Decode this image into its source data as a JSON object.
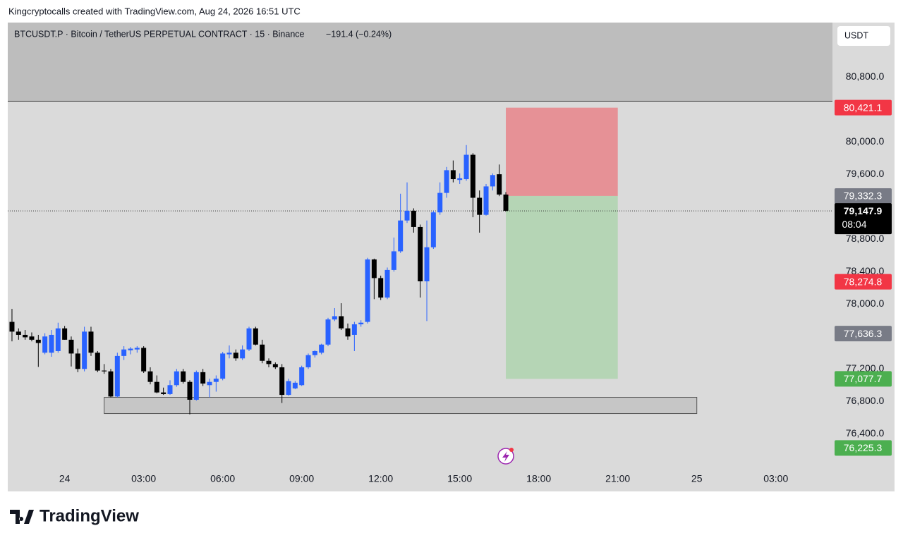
{
  "header": {
    "credit": "Kingcryptocalls created with TradingView.com, Aug 24, 2026 16:51 UTC",
    "symbol": "BTCUSDT.P · Bitcoin / TetherUS PERPETUAL CONTRACT · 15 · Binance",
    "change": "−191.4 (−0.24%)",
    "currency": "USDT"
  },
  "footer": {
    "brand": "TradingView"
  },
  "chart_data": {
    "type": "candlestick",
    "up_color": "#2962ff",
    "down_color": "#000000",
    "open": [
      77780,
      77660,
      77620,
      77600,
      77560,
      77400,
      77400,
      77420,
      77700,
      77560,
      77390,
      77200,
      77660,
      77400,
      77180,
      77170,
      76860,
      77360,
      77430,
      77440,
      77460,
      77170,
      77040,
      76910,
      76890,
      77000,
      77170,
      77040,
      76820,
      77160,
      77000,
      77040,
      77080,
      77380,
      77400,
      77330,
      77440,
      77700,
      77500,
      77300,
      77260,
      77220,
      76880,
      76960,
      77000,
      77220,
      77370,
      77400,
      77500,
      77810,
      77850,
      77700,
      77620,
      77750,
      77780,
      78550,
      78320,
      78080,
      78420,
      78650,
      79030,
      79150,
      78950,
      78280,
      78700,
      79130,
      79370,
      79650,
      79530,
      79540,
      79840,
      79310,
      79100,
      79450,
      79600,
      79350
    ],
    "high": [
      77940,
      77700,
      77680,
      77650,
      77620,
      77640,
      77680,
      77770,
      77730,
      77600,
      77450,
      77720,
      77720,
      77420,
      77260,
      77200,
      77400,
      77480,
      77470,
      77480,
      77480,
      77220,
      77120,
      76970,
      77060,
      77200,
      77200,
      77060,
      77180,
      77200,
      77080,
      77120,
      77410,
      77490,
      77440,
      77490,
      77720,
      77720,
      77560,
      77330,
      77280,
      77260,
      77080,
      77050,
      77240,
      77390,
      77430,
      77510,
      77830,
      77950,
      78010,
      77760,
      77780,
      77800,
      78570,
      78560,
      78350,
      78450,
      78820,
      79360,
      79500,
      79180,
      78980,
      79030,
      79150,
      79500,
      79690,
      79770,
      79610,
      79960,
      79860,
      79400,
      79480,
      79610,
      79720,
      79380
    ],
    "low": [
      77540,
      77560,
      77560,
      77540,
      77225,
      77380,
      77350,
      77400,
      77560,
      77230,
      77160,
      77170,
      77360,
      77160,
      77140,
      76850,
      76850,
      77310,
      77380,
      77400,
      77150,
      77010,
      76900,
      76880,
      76880,
      76980,
      77020,
      76640,
      76810,
      76990,
      76850,
      76920,
      77060,
      77330,
      77300,
      77310,
      77420,
      77490,
      77270,
      77220,
      77200,
      76780,
      76870,
      76950,
      76990,
      77200,
      77340,
      77380,
      77480,
      77790,
      77680,
      77560,
      77420,
      77720,
      77760,
      78060,
      78050,
      78060,
      78400,
      78630,
      79000,
      78880,
      78080,
      77790,
      78680,
      79100,
      79310,
      79500,
      79480,
      79520,
      79070,
      78880,
      79090,
      79400,
      79330,
      79140
    ],
    "close": [
      77660,
      77620,
      77590,
      77560,
      77520,
      77600,
      77620,
      77700,
      77560,
      77390,
      77200,
      77660,
      77400,
      77180,
      77170,
      76860,
      77360,
      77440,
      77450,
      77460,
      77170,
      77040,
      76910,
      76890,
      77000,
      77170,
      77040,
      76820,
      77160,
      77020,
      77040,
      77080,
      77390,
      77400,
      77330,
      77440,
      77700,
      77500,
      77300,
      77260,
      77220,
      76880,
      77050,
      77030,
      77220,
      77370,
      77420,
      77500,
      77810,
      77850,
      77700,
      77600,
      77750,
      77770,
      78550,
      78320,
      78080,
      78420,
      78650,
      79030,
      79150,
      78950,
      78280,
      78700,
      79130,
      79370,
      79650,
      79540,
      79550,
      79840,
      79310,
      79100,
      79450,
      79590,
      79350,
      79150
    ],
    "xlim": [
      -0.64,
      124.6
    ],
    "xticks": [
      {
        "value": 8,
        "label": "24"
      },
      {
        "value": 20,
        "label": "03:00"
      },
      {
        "value": 32,
        "label": "06:00"
      },
      {
        "value": 44,
        "label": "09:00"
      },
      {
        "value": 56,
        "label": "12:00"
      },
      {
        "value": 68,
        "label": "15:00"
      },
      {
        "value": 80,
        "label": "18:00"
      },
      {
        "value": 92,
        "label": "21:00"
      },
      {
        "value": 104,
        "label": "25"
      },
      {
        "value": 116,
        "label": "03:00"
      }
    ],
    "ylim": [
      75690,
      81470
    ],
    "yticks": [
      {
        "value": 76400,
        "label": "76,400.0"
      },
      {
        "value": 76800,
        "label": "76,800.0"
      },
      {
        "value": 77200,
        "label": "77,200.0"
      },
      {
        "value": 78000,
        "label": "78,000.0"
      },
      {
        "value": 78400,
        "label": "78,400.0"
      },
      {
        "value": 78800,
        "label": "78,800.0"
      },
      {
        "value": 79600,
        "label": "79,600.0"
      },
      {
        "value": 80000,
        "label": "80,000.0"
      },
      {
        "value": 80800,
        "label": "80,800.0"
      }
    ],
    "price_badges": [
      {
        "value": 80421.1,
        "label": "80,421.1",
        "color": "#f23645"
      },
      {
        "value": 79332.3,
        "label": "79,332.3",
        "color": "#787b86"
      },
      {
        "value": 78274.8,
        "label": "78,274.8",
        "color": "#f23645"
      },
      {
        "value": 77636.3,
        "label": "77,636.3",
        "color": "#787b86"
      },
      {
        "value": 77077.7,
        "label": "77,077.7",
        "color": "#4caf50"
      },
      {
        "value": 76225.3,
        "label": "76,225.3",
        "color": "#4caf50"
      }
    ],
    "last_price": {
      "value": 79147.9,
      "label": "79,147.9",
      "countdown": "08:04"
    },
    "position": {
      "entry": 79332.3,
      "stop": 80421.1,
      "target": 77077.7,
      "x_range": [
        75,
        92
      ]
    },
    "zone": {
      "range": [
        76650,
        76850
      ],
      "x_range": [
        14,
        104
      ]
    }
  }
}
